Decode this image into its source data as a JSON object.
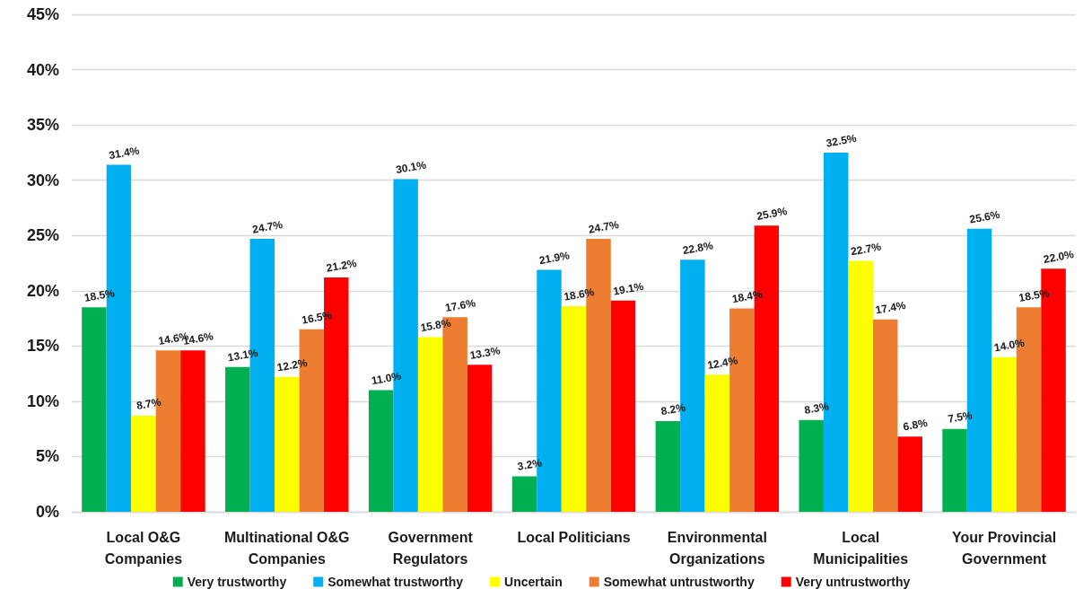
{
  "chart_data": {
    "type": "bar",
    "categories": [
      "Local O&G\nCompanies",
      "Multinational O&G\nCompanies",
      "Government\nRegulators",
      "Local Politicians",
      "Environmental\nOrganizations",
      "Local\nMunicipalities",
      "Your Provincial\nGovernment"
    ],
    "series": [
      {
        "name": "Very trustworthy",
        "color": "#00b050",
        "values": [
          18.5,
          13.1,
          11.0,
          3.2,
          8.2,
          8.3,
          7.5
        ],
        "value_labels": [
          "18.5%",
          "13.1%",
          "11.0%",
          "3.2%",
          "8.2%",
          "8.3%",
          "7.5%"
        ]
      },
      {
        "name": "Somewhat trustworthy",
        "color": "#00b0f0",
        "values": [
          31.4,
          24.7,
          30.1,
          21.9,
          22.8,
          32.5,
          25.6
        ],
        "value_labels": [
          "31.4%",
          "24.7%",
          "30.1%",
          "21.9%",
          "22.8%",
          "32.5%",
          "25.6%"
        ]
      },
      {
        "name": "Uncertain",
        "color": "#ffff00",
        "values": [
          8.7,
          12.2,
          15.8,
          18.6,
          12.4,
          22.7,
          14.0
        ],
        "value_labels": [
          "8.7%",
          "12.2%",
          "15.8%",
          "18.6%",
          "12.4%",
          "22.7%",
          "14.0%"
        ]
      },
      {
        "name": "Somewhat untrustworthy",
        "color": "#ed7d31",
        "values": [
          14.6,
          16.5,
          17.6,
          24.7,
          18.4,
          17.4,
          18.5
        ],
        "value_labels": [
          "14.6%",
          "16.5%",
          "17.6%",
          "24.7%",
          "18.4%",
          "17.4%",
          "18.5%"
        ]
      },
      {
        "name": "Very untrustworthy",
        "color": "#ff0000",
        "values": [
          14.6,
          21.2,
          13.3,
          19.1,
          25.9,
          6.8,
          22.0
        ],
        "value_labels": [
          "14.6%",
          "21.2%",
          "13.3%",
          "19.1%",
          "25.9%",
          "6.8%",
          "22.0%"
        ]
      }
    ],
    "ylim": [
      0,
      45
    ],
    "yticks": [
      {
        "value": 0,
        "label": "0%"
      },
      {
        "value": 5,
        "label": "5%"
      },
      {
        "value": 10,
        "label": "10%"
      },
      {
        "value": 15,
        "label": "15%"
      },
      {
        "value": 20,
        "label": "20%"
      },
      {
        "value": 25,
        "label": "25%"
      },
      {
        "value": 30,
        "label": "30%"
      },
      {
        "value": 35,
        "label": "35%"
      },
      {
        "value": 40,
        "label": "40%"
      },
      {
        "value": 45,
        "label": "45%"
      }
    ],
    "grid": "y",
    "legend": "bottom"
  }
}
